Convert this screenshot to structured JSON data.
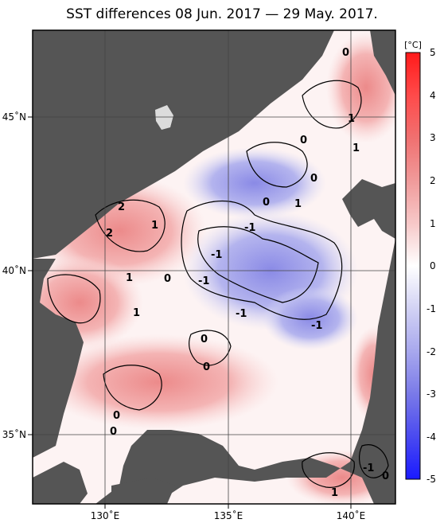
{
  "title": "SST differences 08 Jun. 2017 — 29 May. 2017.",
  "colorbar": {
    "unit": "[°C]",
    "ticks": [
      "5",
      "4",
      "3",
      "2",
      "1",
      "0",
      "-1",
      "-2",
      "-3",
      "-4",
      "-5"
    ],
    "range": [
      -5,
      5
    ],
    "colors": {
      "warm_max": "#ff1a1a",
      "warm_mid": "#f08a8a",
      "neutral": "#ffffff",
      "cool_mid": "#9a9ae8",
      "cool_max": "#1a1aff"
    }
  },
  "axes": {
    "lat_labels": [
      "45˚N",
      "40˚N",
      "35˚N"
    ],
    "lon_labels": [
      "130˚E",
      "135˚E",
      "140˚E"
    ]
  },
  "map": {
    "land_color": "#555555",
    "lake_color": "#dcdcdc"
  },
  "contour_labels": [
    "0",
    "1",
    "0",
    "1",
    "0",
    "1",
    "0",
    "2",
    "-1",
    "1",
    "2",
    "-1",
    "1",
    "0",
    "-1",
    "1",
    "-1",
    "-1",
    "0",
    "0",
    "0",
    "0",
    "-1",
    "0",
    "1"
  ]
}
